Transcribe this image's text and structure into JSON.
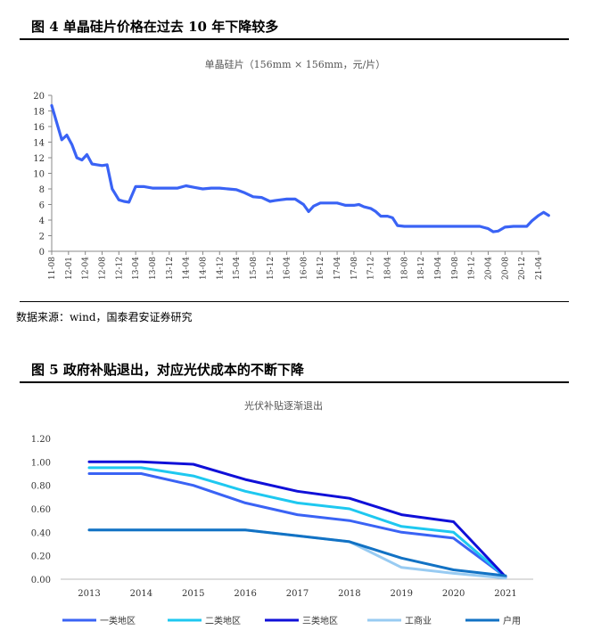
{
  "fig4": {
    "heading": "图 4   单晶硅片价格在过去 10 年下降较多",
    "source": "数据来源：wind，国泰君安证券研究"
  },
  "fig5": {
    "heading": "图 5 政府补贴退出，对应光伏成本的不断下降"
  },
  "chart_data": [
    {
      "type": "line",
      "title": "单晶硅片（156mm × 156mm，元/片）",
      "ylim": [
        0,
        20
      ],
      "yticks": [
        0,
        2,
        4,
        6,
        8,
        10,
        12,
        14,
        16,
        18,
        20
      ],
      "xticks": [
        "11-08",
        "12-01",
        "12-04",
        "12-08",
        "12-12",
        "13-04",
        "13-08",
        "13-12",
        "14-04",
        "14-08",
        "14-12",
        "15-04",
        "15-08",
        "15-12",
        "16-04",
        "16-08",
        "16-12",
        "17-04",
        "17-08",
        "17-12",
        "18-04",
        "18-08",
        "18-12",
        "19-04",
        "19-08",
        "19-12",
        "20-04",
        "20-08",
        "20-12",
        "21-04"
      ],
      "color": "#3a63f5",
      "series": [
        {
          "x": [
            0,
            0.3,
            0.6,
            0.9,
            1.2,
            1.5,
            1.8,
            2.1,
            2.4,
            2.7,
            3.0,
            3.3,
            3.6,
            4.0,
            4.3,
            4.6,
            5.0,
            5.5,
            6.0,
            6.5,
            7.0,
            7.5,
            8.0,
            8.5,
            9.0,
            9.5,
            10.0,
            10.5,
            11.0,
            11.5,
            12.0,
            12.5,
            13.0,
            13.3,
            13.6,
            14.0,
            14.5,
            15.0,
            15.3,
            15.6,
            16.0,
            16.5,
            17.0,
            17.5,
            18.0,
            18.3,
            18.6,
            19.0,
            19.3,
            19.6,
            20.0,
            20.3,
            20.6,
            21.0,
            22.0,
            23.0,
            24.0,
            25.0,
            25.5,
            26.0,
            26.3,
            26.6,
            27.0,
            27.5,
            28.0,
            28.3,
            28.6,
            29.0,
            29.3,
            29.6
          ],
          "y": [
            18.7,
            16.5,
            14.3,
            14.9,
            13.7,
            12.0,
            11.7,
            12.4,
            11.2,
            11.1,
            11.0,
            11.1,
            8.0,
            6.6,
            6.4,
            6.3,
            8.3,
            8.3,
            8.1,
            8.1,
            8.1,
            8.1,
            8.4,
            8.2,
            8.0,
            8.1,
            8.1,
            8.0,
            7.9,
            7.5,
            7.0,
            6.9,
            6.4,
            6.5,
            6.6,
            6.7,
            6.7,
            6.0,
            5.1,
            5.8,
            6.2,
            6.2,
            6.2,
            5.9,
            5.9,
            6.0,
            5.7,
            5.5,
            5.1,
            4.5,
            4.5,
            4.3,
            3.3,
            3.2,
            3.2,
            3.2,
            3.2,
            3.2,
            3.2,
            2.9,
            2.5,
            2.6,
            3.1,
            3.2,
            3.2,
            3.2,
            3.9,
            4.6,
            5.0,
            4.6
          ]
        }
      ]
    },
    {
      "type": "line",
      "title": "光伏补贴逐渐退出",
      "ylim": [
        0,
        1.2
      ],
      "yticks": [
        "0.00",
        "0.20",
        "0.40",
        "0.60",
        "0.80",
        "1.00",
        "1.20"
      ],
      "categories": [
        "2013",
        "2014",
        "2015",
        "2016",
        "2017",
        "2018",
        "2019",
        "2020",
        "2021"
      ],
      "series": [
        {
          "name": "一类地区",
          "color": "#3a63f5",
          "values": [
            0.9,
            0.9,
            0.8,
            0.65,
            0.55,
            0.5,
            0.4,
            0.35,
            0.02
          ]
        },
        {
          "name": "二类地区",
          "color": "#1ec8f0",
          "values": [
            0.95,
            0.95,
            0.88,
            0.75,
            0.65,
            0.6,
            0.45,
            0.4,
            0.02
          ]
        },
        {
          "name": "三类地区",
          "color": "#1010d8",
          "values": [
            1.0,
            1.0,
            0.98,
            0.85,
            0.75,
            0.69,
            0.55,
            0.49,
            0.02
          ]
        },
        {
          "name": "工商业",
          "color": "#98cbf2",
          "values": [
            0.42,
            0.42,
            0.42,
            0.42,
            0.37,
            0.32,
            0.1,
            0.05,
            0.01
          ]
        },
        {
          "name": "户用",
          "color": "#1272c4",
          "values": [
            0.42,
            0.42,
            0.42,
            0.42,
            0.37,
            0.32,
            0.18,
            0.08,
            0.03
          ]
        }
      ]
    }
  ]
}
